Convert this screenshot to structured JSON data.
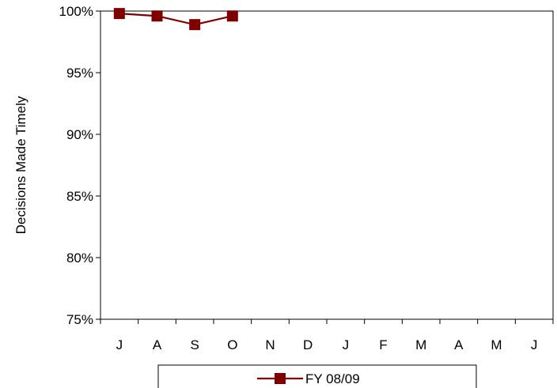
{
  "chart_data": {
    "type": "line",
    "title": "",
    "xlabel": "",
    "ylabel": "Decisions Made Timely",
    "categories": [
      "J",
      "A",
      "S",
      "O",
      "N",
      "D",
      "J",
      "F",
      "M",
      "A",
      "M",
      "J"
    ],
    "series": [
      {
        "name": "FY 08/09",
        "color": "#800000",
        "marker": "square",
        "values": [
          0.998,
          0.996,
          0.989,
          0.996,
          null,
          null,
          null,
          null,
          null,
          null,
          null,
          null
        ]
      }
    ],
    "ylim": [
      0.75,
      1.0
    ],
    "y_ticks": [
      {
        "value": 1.0,
        "label": "100%"
      },
      {
        "value": 0.95,
        "label": "95%"
      },
      {
        "value": 0.9,
        "label": "90%"
      },
      {
        "value": 0.85,
        "label": "85%"
      },
      {
        "value": 0.8,
        "label": "80%"
      },
      {
        "value": 0.75,
        "label": "75%"
      }
    ],
    "grid": false,
    "legend_position": "bottom"
  }
}
